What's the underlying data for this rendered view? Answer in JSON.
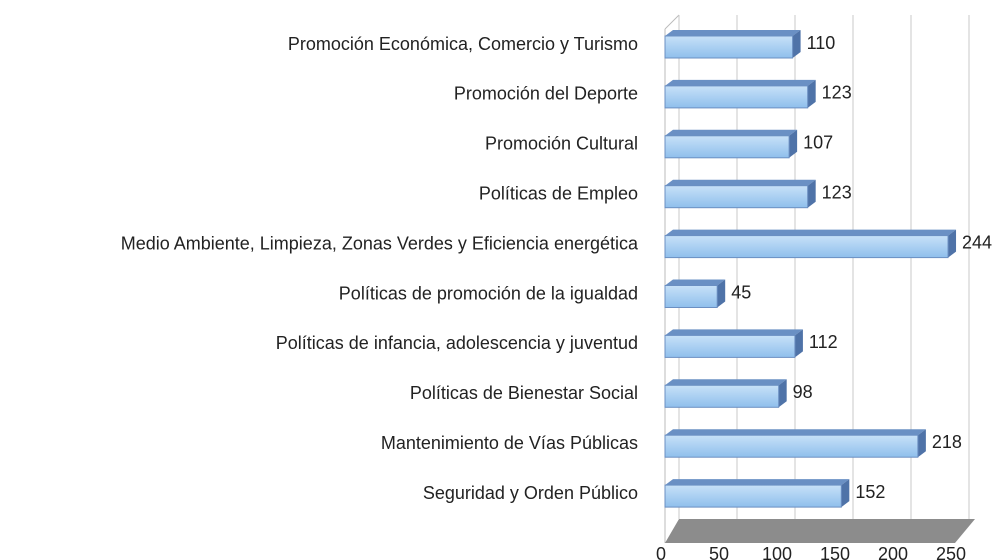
{
  "chart_data": {
    "type": "bar3d_horizontal",
    "categories": [
      "Promoción Económica, Comercio y Turismo",
      "Promoción del Deporte",
      "Promoción Cultural",
      "Políticas de Empleo",
      "Medio Ambiente, Limpieza, Zonas Verdes y Eficiencia energética",
      "Políticas de promoción de la igualdad",
      "Políticas de infancia, adolescencia y juventud",
      "Políticas de Bienestar Social",
      "Mantenimiento de Vías Públicas",
      "Seguridad y Orden Público"
    ],
    "values": [
      110,
      123,
      107,
      123,
      244,
      45,
      112,
      98,
      218,
      152
    ],
    "color": "#a6cdf2",
    "xlim": [
      0,
      250
    ],
    "xticks": [
      0,
      50,
      100,
      150,
      200,
      250
    ],
    "grid": true
  }
}
